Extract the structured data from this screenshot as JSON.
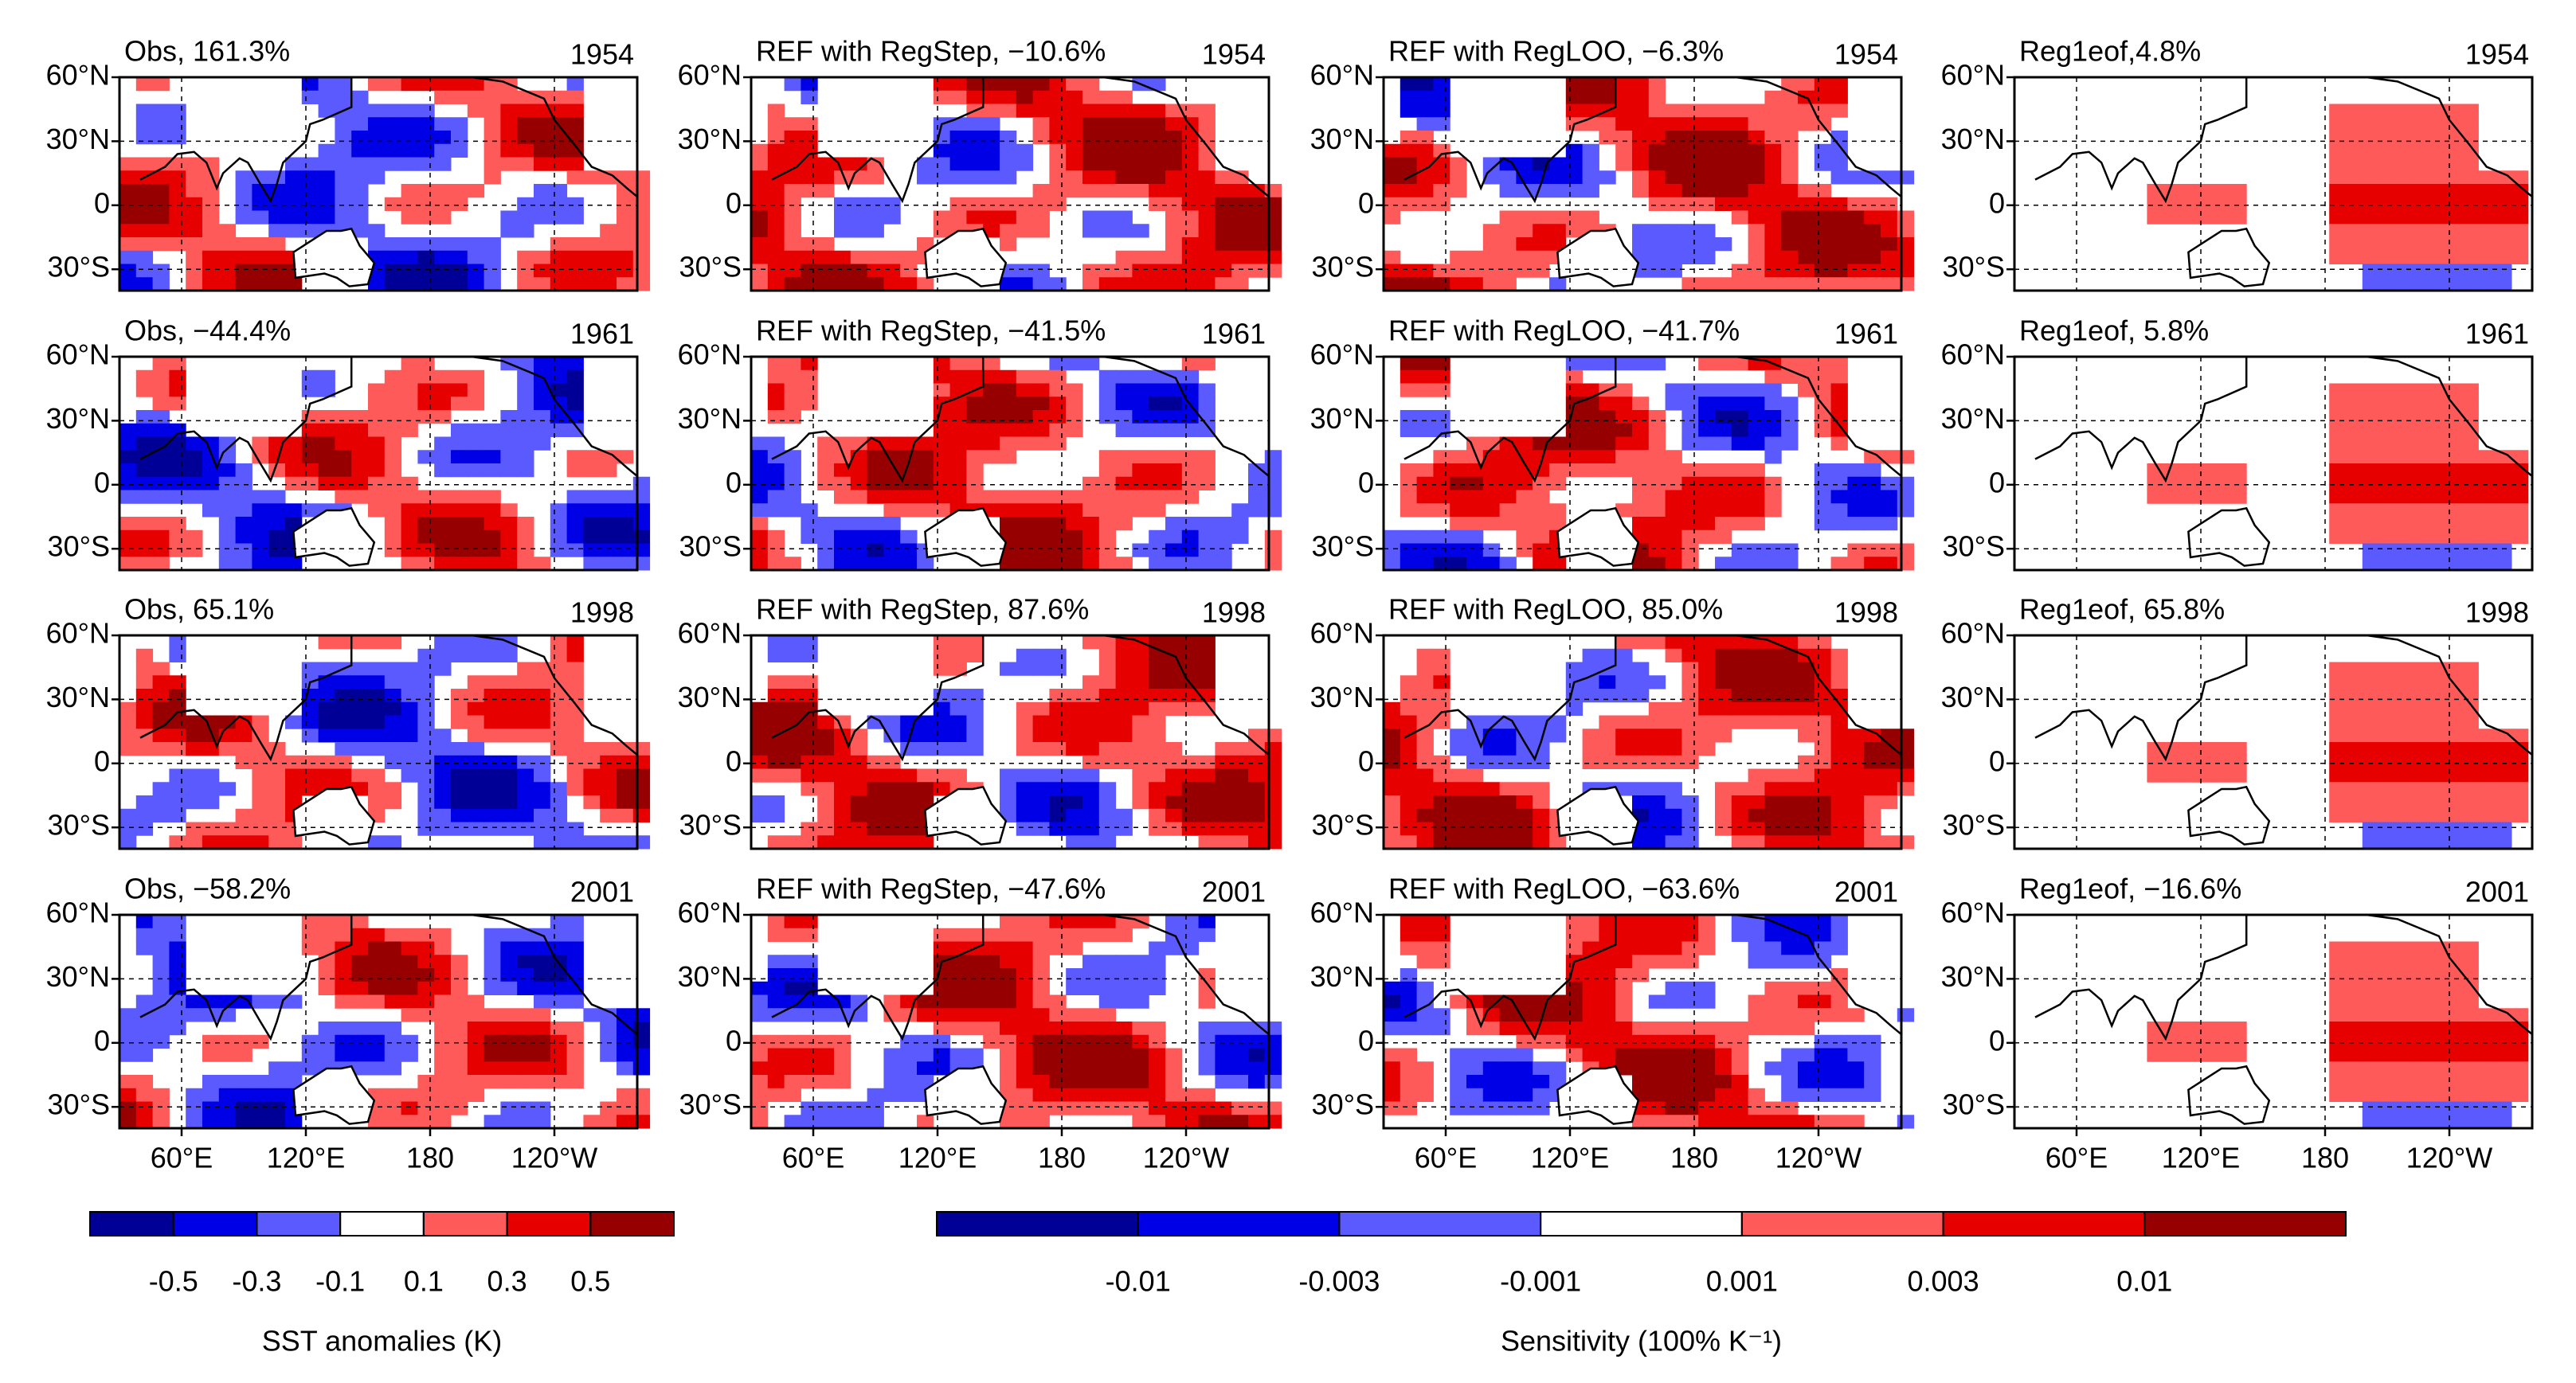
{
  "panels": [
    {
      "title": "Obs, 161.3%",
      "year": "1954"
    },
    {
      "title": "REF with RegStep, −10.6%",
      "year": "1954"
    },
    {
      "title": "REF with RegLOO, −6.3%",
      "year": "1954"
    },
    {
      "title": "Reg1eof,4.8%",
      "year": "1954"
    },
    {
      "title": "Obs, −44.4%",
      "year": "1961"
    },
    {
      "title": "REF with RegStep, −41.5%",
      "year": "1961"
    },
    {
      "title": "REF with RegLOO, −41.7%",
      "year": "1961"
    },
    {
      "title": "Reg1eof, 5.8%",
      "year": "1961"
    },
    {
      "title": "Obs, 65.1%",
      "year": "1998"
    },
    {
      "title": "REF with RegStep, 87.6%",
      "year": "1998"
    },
    {
      "title": "REF with RegLOO, 85.0%",
      "year": "1998"
    },
    {
      "title": "Reg1eof, 65.8%",
      "year": "1998"
    },
    {
      "title": "Obs, −58.2%",
      "year": "2001"
    },
    {
      "title": "REF with RegStep, −47.6%",
      "year": "2001"
    },
    {
      "title": "REF with RegLOO, −63.6%",
      "year": "2001"
    },
    {
      "title": "Reg1eof, −16.6%",
      "year": "2001"
    }
  ],
  "lat_labels": [
    "60°N",
    "30°N",
    "0",
    "30°S"
  ],
  "lon_labels": [
    "60°E",
    "120°E",
    "180",
    "120°W"
  ],
  "colorbars": [
    {
      "title": "SST anomalies (K)",
      "ticks": [
        -0.5,
        -0.3,
        -0.1,
        0.1,
        0.3,
        0.5
      ],
      "colors": [
        "#000096",
        "#0000e6",
        "#5a5aff",
        "#ffffff",
        "#ff5a5a",
        "#e60000",
        "#960000"
      ]
    },
    {
      "title": "Sensitivity (100% K⁻¹)",
      "ticks": [
        -0.01,
        -0.003,
        -0.001,
        0.001,
        0.003,
        0.01
      ],
      "colors": [
        "#000096",
        "#0000e6",
        "#5a5aff",
        "#ffffff",
        "#ff5a5a",
        "#e60000",
        "#960000"
      ]
    }
  ]
}
